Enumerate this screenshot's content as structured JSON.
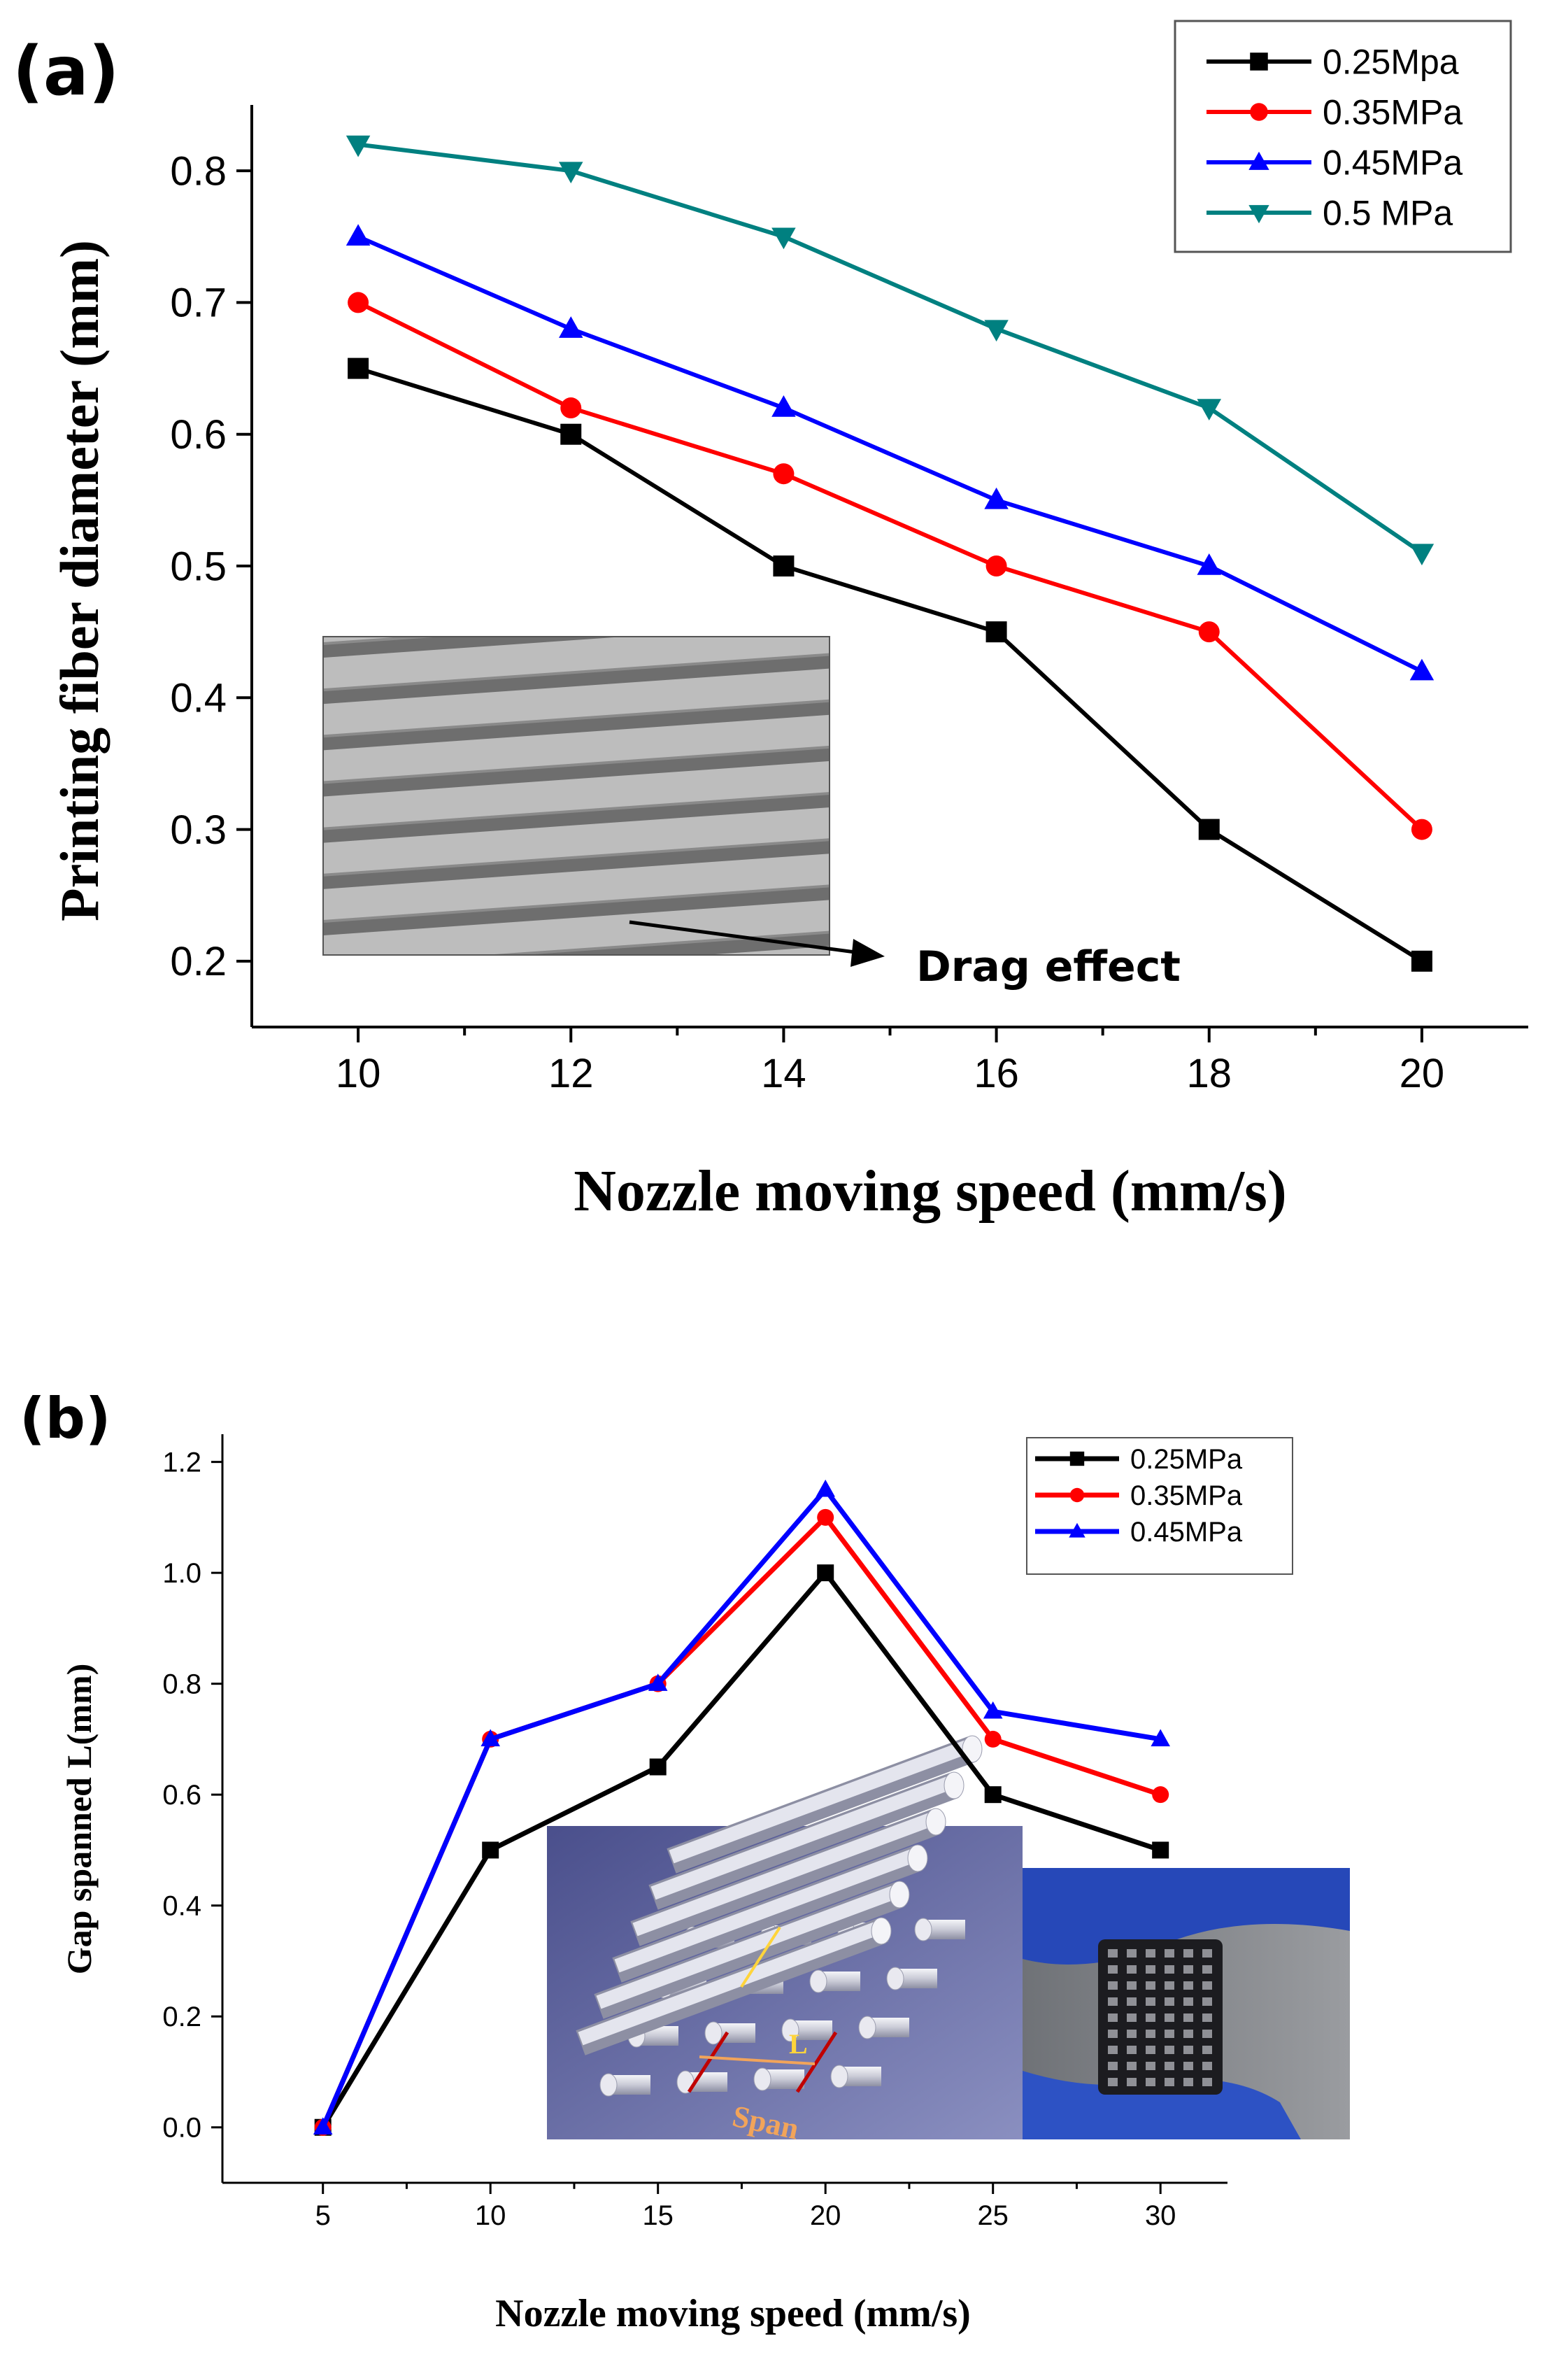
{
  "chart_data": [
    {
      "panel_label": "(a)",
      "type": "line",
      "x": [
        10,
        12,
        14,
        16,
        18,
        20
      ],
      "series": [
        {
          "name": "0.25Mpa",
          "values": [
            0.65,
            0.6,
            0.5,
            0.45,
            0.3,
            0.2
          ],
          "color": "#000000",
          "marker": "square"
        },
        {
          "name": "0.35MPa",
          "values": [
            0.7,
            0.62,
            0.57,
            0.5,
            0.45,
            0.3
          ],
          "color": "#ff0000",
          "marker": "circle"
        },
        {
          "name": "0.45MPa",
          "values": [
            0.75,
            0.68,
            0.62,
            0.55,
            0.5,
            0.42
          ],
          "color": "#0000ff",
          "marker": "triangle-up"
        },
        {
          "name": "0.5 MPa",
          "values": [
            0.82,
            0.8,
            0.75,
            0.68,
            0.62,
            0.51
          ],
          "color": "#008080",
          "marker": "triangle-down"
        }
      ],
      "xlabel": "Nozzle moving speed (mm/s)",
      "ylabel": "Printing fiber diameter (mm)",
      "xlim": [
        9,
        21
      ],
      "ylim": [
        0.15,
        0.85
      ],
      "xticks": [
        "10",
        "12",
        "14",
        "16",
        "18",
        "20"
      ],
      "yticks": [
        "0.2",
        "0.3",
        "0.4",
        "0.5",
        "0.6",
        "0.7",
        "0.8"
      ],
      "legend_position": "top-right",
      "grid": false,
      "annotation": "Drag effect"
    },
    {
      "panel_label": "(b)",
      "type": "line",
      "x": [
        5,
        10,
        15,
        20,
        25,
        30
      ],
      "series": [
        {
          "name": "0.25MPa",
          "values": [
            0.0,
            0.5,
            0.65,
            1.0,
            0.6,
            0.5
          ],
          "color": "#000000",
          "marker": "square"
        },
        {
          "name": "0.35MPa",
          "values": [
            0.0,
            0.7,
            0.8,
            1.1,
            0.7,
            0.6
          ],
          "color": "#ff0000",
          "marker": "circle"
        },
        {
          "name": "0.45MPa",
          "values": [
            0.0,
            0.7,
            0.8,
            1.15,
            0.75,
            0.7
          ],
          "color": "#0000ff",
          "marker": "triangle-up"
        }
      ],
      "xlabel": "Nozzle moving speed (mm/s)",
      "ylabel": "Gap spanned L(mm)",
      "xlim": [
        2,
        32
      ],
      "ylim": [
        -0.1,
        1.25
      ],
      "xticks": [
        "5",
        "10",
        "15",
        "20",
        "25",
        "30"
      ],
      "yticks": [
        "0.0",
        "0.2",
        "0.4",
        "0.6",
        "0.8",
        "1.0",
        "1.2"
      ],
      "legend_position": "top-right",
      "grid": false,
      "inset_labels": {
        "span": "Span",
        "length": "L"
      }
    }
  ]
}
